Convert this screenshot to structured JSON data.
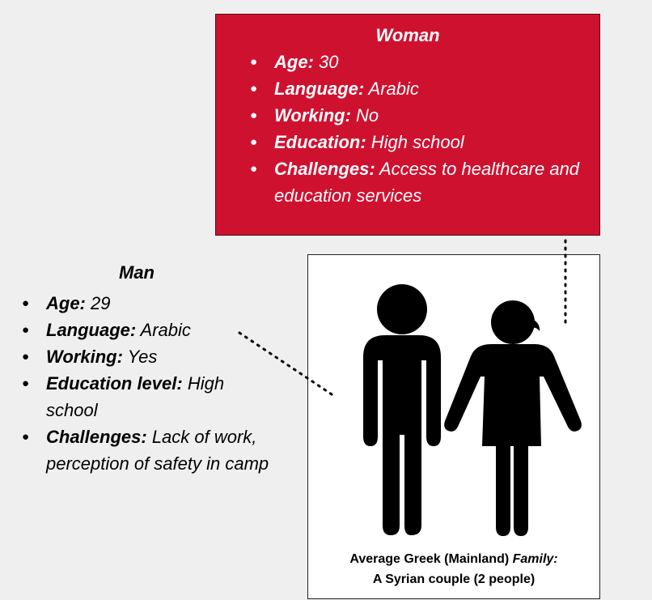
{
  "woman": {
    "title": "Woman",
    "items": [
      {
        "label": "Age:",
        "value": " 30"
      },
      {
        "label": "Language:",
        "value": " Arabic"
      },
      {
        "label": "Working:",
        "value": " No"
      },
      {
        "label": "Education:",
        "value": " High school"
      },
      {
        "label": "Challenges:",
        "value": " Access to healthcare and education services"
      }
    ]
  },
  "man": {
    "title": "Man",
    "items": [
      {
        "label": "Age:",
        "value": " 29"
      },
      {
        "label": "Language:",
        "value": " Arabic"
      },
      {
        "label": "Working:",
        "value": " Yes"
      },
      {
        "label": "Education level:",
        "value": " High school"
      },
      {
        "label": "Challenges:",
        "value": " Lack of work, perception of safety in camp"
      }
    ]
  },
  "caption": {
    "line1_bold": "Average Greek (Mainland) ",
    "line1_italic": "Family:",
    "line2": "A Syrian couple (2 people)"
  },
  "bullet_glyph": "●",
  "colors": {
    "woman_box": "#cf1130",
    "background": "#efefef",
    "figure": "#000000"
  }
}
